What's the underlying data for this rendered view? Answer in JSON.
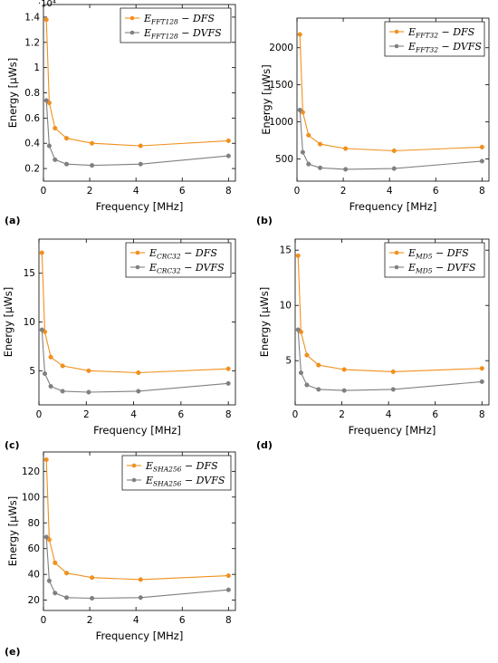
{
  "colors": {
    "dfs": "#f0901e",
    "dvfs": "#808080"
  },
  "chart_data": [
    {
      "type": "line",
      "panel_label": "(a)",
      "xlabel": "Frequency [MHz]",
      "ylabel": "Energy [µWs]",
      "y_multiplier": "·10⁴",
      "xlim": [
        0,
        8.3
      ],
      "ylim": [
        0.1,
        1.5
      ],
      "xticks": [
        0,
        2,
        4,
        6,
        8
      ],
      "xtick_labels": [
        "0",
        "2",
        "4",
        "6",
        "8"
      ],
      "yticks": [
        0.2,
        0.4,
        0.6,
        0.8,
        1,
        1.2,
        1.4
      ],
      "ytick_labels": [
        "0.2",
        "0.4",
        "0.6",
        "0.8",
        "1",
        "1.2",
        "1.4"
      ],
      "legend_position": "top-right",
      "series": [
        {
          "name": "E_{FFT128} − DFS",
          "legend_main": "E",
          "legend_sub": "FFT128",
          "legend_rest": " − DFS",
          "color_key": "dfs",
          "x": [
            0.125,
            0.25,
            0.5,
            1,
            2.1,
            4.2,
            8
          ],
          "y": [
            1.38,
            0.72,
            0.52,
            0.44,
            0.4,
            0.38,
            0.42
          ]
        },
        {
          "name": "E_{FFT128} − DVFS",
          "legend_main": "E",
          "legend_sub": "FFT128",
          "legend_rest": " − DVFS",
          "color_key": "dvfs",
          "x": [
            0.125,
            0.25,
            0.5,
            1,
            2.1,
            4.2,
            8
          ],
          "y": [
            0.74,
            0.38,
            0.27,
            0.235,
            0.225,
            0.235,
            0.3
          ]
        }
      ]
    },
    {
      "type": "line",
      "panel_label": "(b)",
      "xlabel": "Frequency [MHz]",
      "ylabel": "Energy [µWs]",
      "y_multiplier": "",
      "xlim": [
        0,
        8.3
      ],
      "ylim": [
        200,
        2400
      ],
      "xticks": [
        0,
        2,
        4,
        6,
        8
      ],
      "xtick_labels": [
        "0",
        "2",
        "4",
        "6",
        "8"
      ],
      "yticks": [
        500,
        1000,
        1500,
        2000
      ],
      "ytick_labels": [
        "500",
        "1000",
        "1500",
        "2000"
      ],
      "legend_position": "top-right",
      "series": [
        {
          "name": "E_{FFT32} − DFS",
          "legend_main": "E",
          "legend_sub": "FFT32",
          "legend_rest": " − DFS",
          "color_key": "dfs",
          "x": [
            0.125,
            0.25,
            0.5,
            1,
            2.1,
            4.2,
            8
          ],
          "y": [
            2180,
            1130,
            820,
            700,
            640,
            610,
            660
          ]
        },
        {
          "name": "E_{FFT32} − DVFS",
          "legend_main": "E",
          "legend_sub": "FFT32",
          "legend_rest": " − DVFS",
          "color_key": "dvfs",
          "x": [
            0.125,
            0.25,
            0.5,
            1,
            2.1,
            4.2,
            8
          ],
          "y": [
            1160,
            590,
            430,
            380,
            360,
            370,
            470
          ]
        }
      ]
    },
    {
      "type": "line",
      "panel_label": "(c)",
      "xlabel": "Frequency [MHz]",
      "ylabel": "Energy [µWs]",
      "y_multiplier": "",
      "xlim": [
        0,
        8.3
      ],
      "ylim": [
        1.5,
        18.5
      ],
      "xticks": [
        0,
        2,
        4,
        6,
        8
      ],
      "xtick_labels": [
        "0",
        "2",
        "4",
        "6",
        "8"
      ],
      "yticks": [
        5,
        10,
        15
      ],
      "ytick_labels": [
        "5",
        "10",
        "15"
      ],
      "legend_position": "top-right",
      "series": [
        {
          "name": "E_{CRC32} − DFS",
          "legend_main": "E",
          "legend_sub": "CRC32",
          "legend_rest": " − DFS",
          "color_key": "dfs",
          "x": [
            0.125,
            0.25,
            0.5,
            1,
            2.1,
            4.2,
            8
          ],
          "y": [
            17.1,
            9.0,
            6.4,
            5.5,
            5.0,
            4.8,
            5.2
          ]
        },
        {
          "name": "E_{CRC32} − DVFS",
          "legend_main": "E",
          "legend_sub": "CRC32",
          "legend_rest": " − DVFS",
          "color_key": "dvfs",
          "x": [
            0.125,
            0.25,
            0.5,
            1,
            2.1,
            4.2,
            8
          ],
          "y": [
            9.2,
            4.7,
            3.4,
            2.9,
            2.8,
            2.9,
            3.7
          ]
        }
      ]
    },
    {
      "type": "line",
      "panel_label": "(d)",
      "xlabel": "Frequency [MHz]",
      "ylabel": "Energy [µWs]",
      "y_multiplier": "",
      "xlim": [
        0,
        8.3
      ],
      "ylim": [
        1,
        16
      ],
      "xticks": [
        0,
        2,
        4,
        6,
        8
      ],
      "xtick_labels": [
        "0",
        "2",
        "4",
        "6",
        "8"
      ],
      "yticks": [
        5,
        10,
        15
      ],
      "ytick_labels": [
        "5",
        "10",
        "15"
      ],
      "legend_position": "top-right",
      "series": [
        {
          "name": "E_{MD5} − DFS",
          "legend_main": "E",
          "legend_sub": "MD5",
          "legend_rest": " − DFS",
          "color_key": "dfs",
          "x": [
            0.125,
            0.25,
            0.5,
            1,
            2.1,
            4.2,
            8
          ],
          "y": [
            14.5,
            7.6,
            5.5,
            4.6,
            4.2,
            4.0,
            4.3
          ]
        },
        {
          "name": "E_{MD5} − DVFS",
          "legend_main": "E",
          "legend_sub": "MD5",
          "legend_rest": " − DVFS",
          "color_key": "dvfs",
          "x": [
            0.125,
            0.25,
            0.5,
            1,
            2.1,
            4.2,
            8
          ],
          "y": [
            7.8,
            3.9,
            2.8,
            2.4,
            2.3,
            2.4,
            3.1
          ]
        }
      ]
    },
    {
      "type": "line",
      "panel_label": "(e)",
      "xlabel": "Frequency [MHz]",
      "ylabel": "Energy [µWs]",
      "y_multiplier": "",
      "xlim": [
        0,
        8.3
      ],
      "ylim": [
        12,
        135
      ],
      "xticks": [
        0,
        2,
        4,
        6,
        8
      ],
      "xtick_labels": [
        "0",
        "2",
        "4",
        "6",
        "8"
      ],
      "yticks": [
        20,
        40,
        60,
        80,
        100,
        120
      ],
      "ytick_labels": [
        "20",
        "40",
        "60",
        "80",
        "100",
        "120"
      ],
      "legend_position": "top-right",
      "series": [
        {
          "name": "E_{SHA256} − DFS",
          "legend_main": "E",
          "legend_sub": "SHA256",
          "legend_rest": " − DFS",
          "color_key": "dfs",
          "x": [
            0.125,
            0.25,
            0.5,
            1,
            2.1,
            4.2,
            8
          ],
          "y": [
            129,
            67,
            49,
            41,
            37.5,
            36,
            39
          ]
        },
        {
          "name": "E_{SHA256} − DVFS",
          "legend_main": "E",
          "legend_sub": "SHA256",
          "legend_rest": " − DVFS",
          "color_key": "dvfs",
          "x": [
            0.125,
            0.25,
            0.5,
            1,
            2.1,
            4.2,
            8
          ],
          "y": [
            69,
            35,
            25.5,
            22,
            21.5,
            22,
            28
          ]
        }
      ]
    }
  ]
}
